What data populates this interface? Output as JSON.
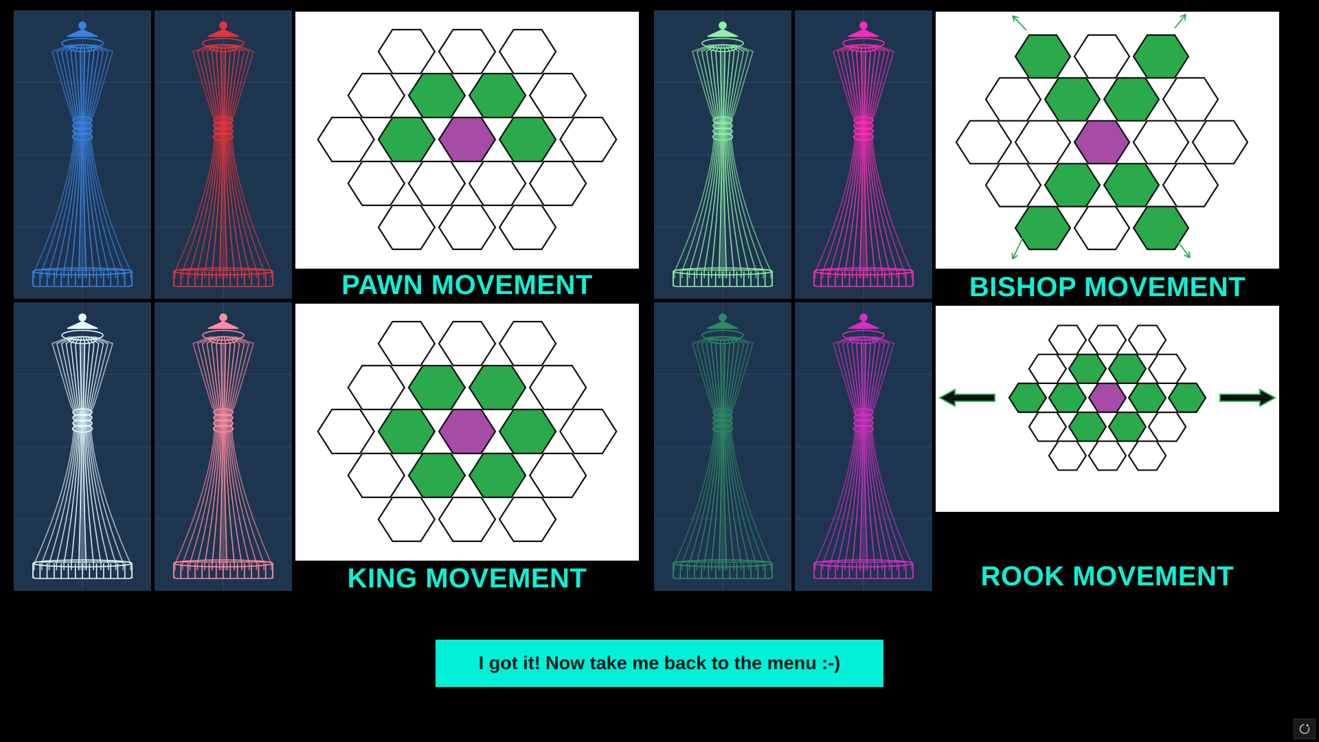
{
  "pieces": [
    {
      "id": "blue",
      "color": "#3a82e0"
    },
    {
      "id": "red",
      "color": "#e8323c"
    },
    {
      "id": "lightgreen",
      "color": "#8ef0a6"
    },
    {
      "id": "magenta",
      "color": "#ff2ab4"
    },
    {
      "id": "white",
      "color": "#e6fbff"
    },
    {
      "id": "pink",
      "color": "#ff8ca0"
    },
    {
      "id": "darkgreen",
      "color": "#2f8a62"
    },
    {
      "id": "purple",
      "color": "#d42ec2"
    }
  ],
  "boards": {
    "pawn": {
      "caption": "PAWN MOVEMENT"
    },
    "king": {
      "caption": "KING MOVEMENT"
    },
    "bishop": {
      "caption": "BISHOP MOVEMENT"
    },
    "rook": {
      "caption": "ROOK MOVEMENT"
    }
  },
  "colors": {
    "move_cell": "#2aaa4a",
    "piece_cell": "#a64ca6",
    "empty_cell": "#ffffff",
    "caption": "#0ff0d2",
    "button_bg": "#00f0d8"
  },
  "back_button": {
    "label": "I got it! Now take me back to the menu :-)"
  },
  "icons": {
    "corner": "refresh-icon"
  }
}
